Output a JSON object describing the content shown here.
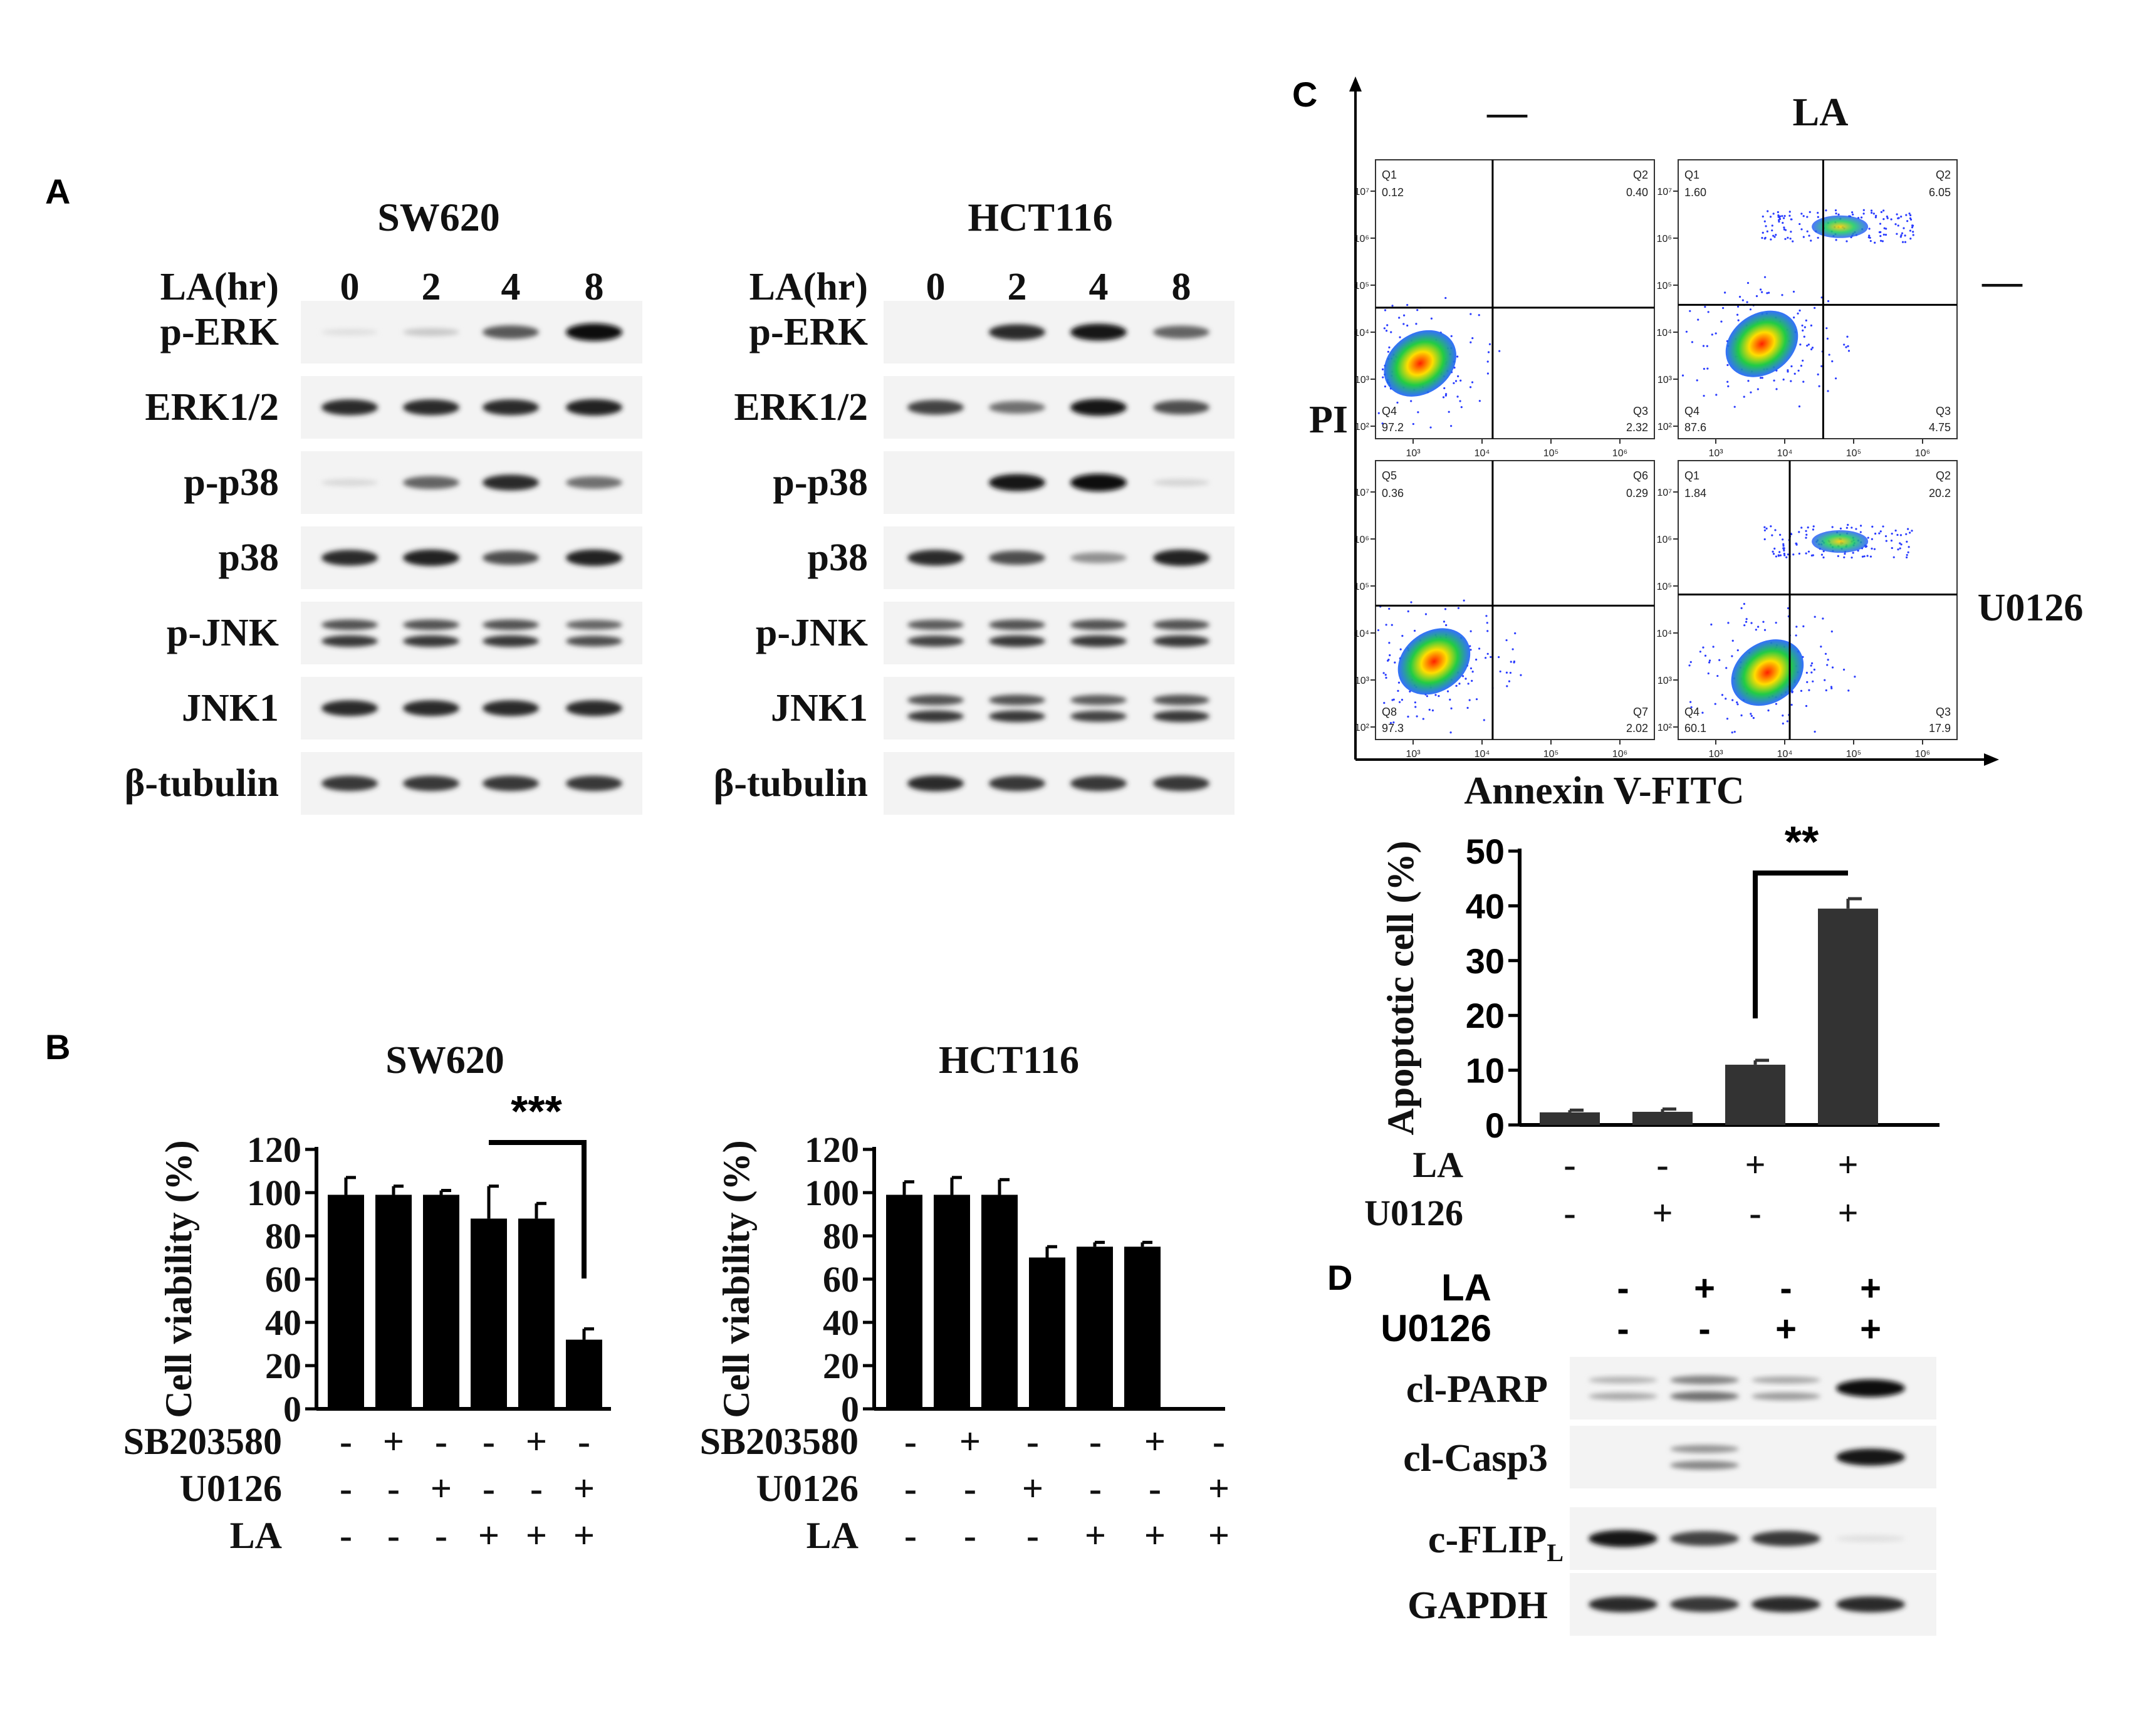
{
  "panel_letters": {
    "a": "A",
    "b": "B",
    "c": "C",
    "d": "D"
  },
  "panel_a": {
    "time_label": "LA(hr)",
    "time_points": [
      "0",
      "2",
      "4",
      "8"
    ],
    "blots": [
      {
        "title": "SW620",
        "rows": [
          {
            "label": "p-ERK",
            "bands": [
              0.05,
              0.15,
              0.65,
              1.0
            ]
          },
          {
            "label": "ERK1/2",
            "bands": [
              0.85,
              0.85,
              0.85,
              0.9
            ]
          },
          {
            "label": "p-p38",
            "bands": [
              0.08,
              0.6,
              0.85,
              0.55
            ]
          },
          {
            "label": "p38",
            "bands": [
              0.85,
              0.9,
              0.7,
              0.9
            ]
          },
          {
            "label": "p-JNK",
            "bands": [
              0.8,
              0.8,
              0.8,
              0.7
            ],
            "doublet": true
          },
          {
            "label": "JNK1",
            "bands": [
              0.85,
              0.85,
              0.85,
              0.85
            ]
          },
          {
            "label": "β-tubulin",
            "bands": [
              0.8,
              0.8,
              0.8,
              0.8
            ]
          }
        ]
      },
      {
        "title": "HCT116",
        "rows": [
          {
            "label": "p-ERK",
            "bands": [
              0.0,
              0.85,
              0.95,
              0.6
            ]
          },
          {
            "label": "ERK1/2",
            "bands": [
              0.75,
              0.55,
              0.95,
              0.7
            ]
          },
          {
            "label": "p-p38",
            "bands": [
              0.0,
              0.95,
              1.0,
              0.1
            ]
          },
          {
            "label": "p38",
            "bands": [
              0.85,
              0.7,
              0.4,
              0.9
            ]
          },
          {
            "label": "p-JNK",
            "bands": [
              0.75,
              0.8,
              0.8,
              0.8
            ],
            "doublet": true
          },
          {
            "label": "JNK1",
            "bands": [
              0.8,
              0.8,
              0.75,
              0.8
            ],
            "doublet": true
          },
          {
            "label": "β-tubulin",
            "bands": [
              0.85,
              0.8,
              0.8,
              0.8
            ]
          }
        ]
      }
    ]
  },
  "panel_b": {
    "treatment_rows": [
      {
        "label": "SB203580",
        "marks": [
          "-",
          "+",
          "-",
          "-",
          "+",
          "-"
        ]
      },
      {
        "label": "U0126",
        "marks": [
          "-",
          "-",
          "+",
          "-",
          "-",
          "+"
        ]
      },
      {
        "label": "LA",
        "marks": [
          "-",
          "-",
          "-",
          "+",
          "+",
          "+"
        ]
      }
    ]
  },
  "panel_c": {
    "col_headers": [
      "—",
      "LA"
    ],
    "row_headers": [
      "—",
      "U0126"
    ],
    "y_axis": "PI",
    "x_axis": "Annexin V-FITC",
    "plots": [
      {
        "tl_name": "Q1",
        "tl_val": "0.12",
        "tr_name": "Q2",
        "tr_val": "0.40",
        "bl_name": "Q4",
        "bl_val": "97.2",
        "br_name": "Q3",
        "br_val": "2.32"
      },
      {
        "tl_name": "Q1",
        "tl_val": "1.60",
        "tr_name": "Q2",
        "tr_val": "6.05",
        "bl_name": "Q4",
        "bl_val": "87.6",
        "br_name": "Q3",
        "br_val": "4.75"
      },
      {
        "tl_name": "Q5",
        "tl_val": "0.36",
        "tr_name": "Q6",
        "tr_val": "0.29",
        "bl_name": "Q8",
        "bl_val": "97.3",
        "br_name": "Q7",
        "br_val": "2.02"
      },
      {
        "tl_name": "Q1",
        "tl_val": "1.84",
        "tr_name": "Q2",
        "tr_val": "20.2",
        "bl_name": "Q4",
        "bl_val": "60.1",
        "br_name": "Q3",
        "br_val": "17.9"
      }
    ],
    "x_ticks": [
      "10³",
      "10⁴",
      "10⁵",
      "10⁶"
    ],
    "y_ticks": [
      "10⁷",
      "10⁶",
      "10⁵",
      "10⁴",
      "10³",
      "10²"
    ],
    "treatment_rows": [
      {
        "label": "LA",
        "marks": [
          "-",
          "-",
          "+",
          "+"
        ]
      },
      {
        "label": "U0126",
        "marks": [
          "-",
          "+",
          "-",
          "+"
        ]
      }
    ]
  },
  "panel_d": {
    "treatment_rows": [
      {
        "label": "LA",
        "marks": [
          "-",
          "+",
          "-",
          "+"
        ]
      },
      {
        "label": "U0126",
        "marks": [
          "-",
          "-",
          "+",
          "+"
        ]
      }
    ],
    "blot_rows": [
      {
        "label": "cl-PARP",
        "bands": [
          0.3,
          0.55,
          0.35,
          1.0
        ],
        "doublet": true
      },
      {
        "label": "cl-Casp3",
        "bands": [
          0.0,
          0.45,
          0.0,
          0.95
        ],
        "doublet": true
      },
      {
        "label": "c-FLIP",
        "sub": "L",
        "bands": [
          0.95,
          0.75,
          0.8,
          0.05
        ]
      },
      {
        "label": "GAPDH",
        "bands": [
          0.85,
          0.8,
          0.85,
          0.85
        ]
      }
    ]
  },
  "chart_data": [
    {
      "type": "bar",
      "title": "SW620",
      "ylabel": "Cell viability (%)",
      "ylim": [
        0,
        120
      ],
      "yticks": [
        0,
        20,
        40,
        60,
        80,
        100,
        120
      ],
      "values": [
        99,
        99,
        99,
        88,
        88,
        32
      ],
      "errors": [
        8,
        4,
        2,
        15,
        7,
        5
      ],
      "significance": {
        "label": "***",
        "between": [
          3,
          5
        ]
      },
      "bar_color": "#000000"
    },
    {
      "type": "bar",
      "title": "HCT116",
      "ylabel": "Cell viability (%)",
      "ylim": [
        0,
        120
      ],
      "yticks": [
        0,
        20,
        40,
        60,
        80,
        100,
        120
      ],
      "values": [
        99,
        99,
        99,
        70,
        75,
        75
      ],
      "errors": [
        6,
        8,
        7,
        5,
        2,
        2
      ],
      "bar_color": "#000000"
    },
    {
      "type": "bar",
      "ylabel": "Apoptotic cell (%)",
      "ylim": [
        0,
        50
      ],
      "yticks": [
        0,
        10,
        20,
        30,
        40,
        50
      ],
      "values": [
        2.3,
        2.4,
        11.0,
        39.5
      ],
      "errors": [
        0.4,
        0.5,
        0.8,
        1.8
      ],
      "significance": {
        "label": "**",
        "between": [
          2,
          3
        ]
      },
      "bar_color": "#333333"
    }
  ]
}
